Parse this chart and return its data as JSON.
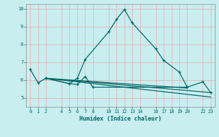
{
  "xlabel": "Humidex (Indice chaleur)",
  "bg_color": "#c8eef0",
  "grid_color": "#e8b0b0",
  "line_color": "#006666",
  "xlim": [
    -0.5,
    23.5
  ],
  "ylim": [
    4.5,
    10.25
  ],
  "xticks": [
    0,
    1,
    2,
    4,
    5,
    6,
    7,
    8,
    10,
    11,
    12,
    13,
    14,
    16,
    17,
    18,
    19,
    20,
    22,
    23
  ],
  "yticks": [
    5,
    6,
    7,
    8,
    9,
    10
  ],
  "line1_x": [
    0,
    1,
    2,
    5,
    6,
    7,
    10,
    11,
    12,
    13,
    16,
    17,
    19,
    20
  ],
  "line1_y": [
    6.6,
    5.85,
    6.1,
    5.8,
    6.1,
    7.15,
    8.7,
    9.4,
    9.95,
    9.2,
    7.75,
    7.1,
    6.45,
    5.6
  ],
  "line2_x": [
    2,
    5,
    6,
    7,
    8,
    20,
    22,
    23
  ],
  "line2_y": [
    6.1,
    5.8,
    5.75,
    6.2,
    5.6,
    5.6,
    5.9,
    5.3
  ],
  "line3_x": [
    2,
    20
  ],
  "line3_y": [
    6.1,
    5.55
  ],
  "line4_x": [
    2,
    23
  ],
  "line4_y": [
    6.1,
    5.3
  ],
  "line5_x": [
    2,
    23
  ],
  "line5_y": [
    6.1,
    5.05
  ]
}
